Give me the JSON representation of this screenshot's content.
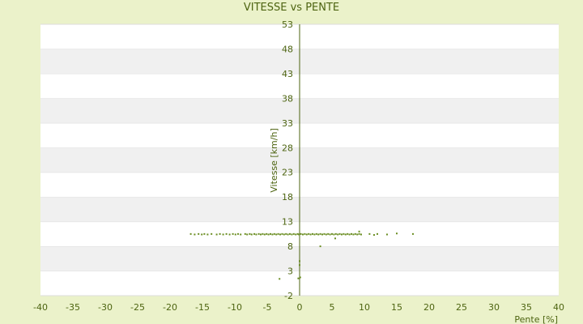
{
  "chart_data": {
    "type": "scatter",
    "title": "VITESSE vs PENTE",
    "xlabel": "Pente [%]",
    "ylabel": "Vitesse [km/h]",
    "xlim": [
      -40,
      40
    ],
    "ylim": [
      -2,
      53
    ],
    "x_ticks": [
      "-40",
      "-35",
      "-30",
      "-25",
      "-20",
      "-15",
      "-10",
      "-5",
      "0",
      "5",
      "10",
      "15",
      "20",
      "25",
      "30",
      "35",
      "40"
    ],
    "y_ticks": [
      "-2",
      "3",
      "8",
      "13",
      "18",
      "23",
      "28",
      "33",
      "38",
      "43",
      "48",
      "53"
    ],
    "grid": "horizontal alternating bands",
    "legend": "none",
    "colors": {
      "background": "#ebf2ca",
      "band_light": "#ffffff",
      "band_dark": "#f0f0f0",
      "text": "#4d6411",
      "point": "#6b8e23",
      "axis": "#4d6411"
    },
    "series": [
      {
        "points": [
          [
            -16.8,
            10.5
          ],
          [
            -16.2,
            10.4
          ],
          [
            -15.6,
            10.5
          ],
          [
            -15.1,
            10.4
          ],
          [
            -14.7,
            10.5
          ],
          [
            -14.2,
            10.4
          ],
          [
            -13.6,
            10.5
          ],
          [
            -12.8,
            10.4
          ],
          [
            -12.3,
            10.5
          ],
          [
            -11.8,
            10.4
          ],
          [
            -11.3,
            10.5
          ],
          [
            -10.8,
            10.4
          ],
          [
            -10.3,
            10.5
          ],
          [
            -9.9,
            10.4
          ],
          [
            -9.5,
            10.5
          ],
          [
            -9.1,
            10.4
          ],
          [
            -8.4,
            10.5
          ],
          [
            -8.1,
            10.4
          ],
          [
            -7.7,
            10.5
          ],
          [
            -7.4,
            10.4
          ],
          [
            -7.0,
            10.5
          ],
          [
            -6.7,
            10.4
          ],
          [
            -6.3,
            10.5
          ],
          [
            -6.0,
            10.4
          ],
          [
            -5.7,
            10.5
          ],
          [
            -5.4,
            10.4
          ],
          [
            -5.1,
            10.5
          ],
          [
            -4.8,
            10.4
          ],
          [
            -4.5,
            10.5
          ],
          [
            -4.2,
            10.4
          ],
          [
            -3.9,
            10.5
          ],
          [
            -3.6,
            10.4
          ],
          [
            -3.3,
            10.5
          ],
          [
            -3.0,
            10.4
          ],
          [
            -2.7,
            10.5
          ],
          [
            -2.4,
            10.4
          ],
          [
            -2.1,
            10.5
          ],
          [
            -1.8,
            10.4
          ],
          [
            -1.5,
            10.5
          ],
          [
            -1.2,
            10.4
          ],
          [
            -0.9,
            10.5
          ],
          [
            -0.6,
            10.4
          ],
          [
            -0.3,
            10.5
          ],
          [
            -0.1,
            10.4
          ],
          [
            0.2,
            10.5
          ],
          [
            0.5,
            10.4
          ],
          [
            0.8,
            10.5
          ],
          [
            1.1,
            10.4
          ],
          [
            1.4,
            10.5
          ],
          [
            1.7,
            10.4
          ],
          [
            2.0,
            10.5
          ],
          [
            2.3,
            10.4
          ],
          [
            2.6,
            10.5
          ],
          [
            2.9,
            10.4
          ],
          [
            3.2,
            10.5
          ],
          [
            3.5,
            10.4
          ],
          [
            3.8,
            10.5
          ],
          [
            4.1,
            10.4
          ],
          [
            4.4,
            10.5
          ],
          [
            4.7,
            10.4
          ],
          [
            5.0,
            10.5
          ],
          [
            5.3,
            10.4
          ],
          [
            5.6,
            10.5
          ],
          [
            5.9,
            10.4
          ],
          [
            6.2,
            10.5
          ],
          [
            6.5,
            10.4
          ],
          [
            6.8,
            10.5
          ],
          [
            7.1,
            10.4
          ],
          [
            7.4,
            10.5
          ],
          [
            7.7,
            10.4
          ],
          [
            8.0,
            10.5
          ],
          [
            8.3,
            10.4
          ],
          [
            8.6,
            10.5
          ],
          [
            8.9,
            10.4
          ],
          [
            9.2,
            10.5
          ],
          [
            9.5,
            10.4
          ],
          [
            9.2,
            11.0
          ],
          [
            10.8,
            10.5
          ],
          [
            11.5,
            10.3
          ],
          [
            12.0,
            10.5
          ],
          [
            13.5,
            10.4
          ],
          [
            15.0,
            10.6
          ],
          [
            17.5,
            10.5
          ],
          [
            5.5,
            9.6
          ],
          [
            3.2,
            8.0
          ],
          [
            0.0,
            5.0
          ],
          [
            0.0,
            4.2
          ],
          [
            -0.2,
            1.5
          ],
          [
            0.1,
            1.7
          ],
          [
            -3.1,
            1.4
          ]
        ]
      }
    ]
  }
}
